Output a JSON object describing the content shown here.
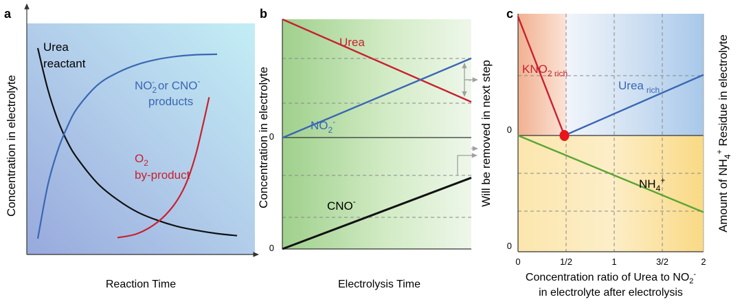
{
  "colors": {
    "urea": "#c8202f",
    "no2": "#3a67b3",
    "cno": "#111111",
    "o2": "#c8202f",
    "nh4": "#5aa533",
    "axis": "#333333",
    "gridline": "#999999"
  },
  "chart_data": [
    {
      "panel": "a",
      "type": "line",
      "title": "",
      "xlabel": "Reaction Time",
      "ylabel": "Concentration in electrolyte",
      "xlim": [
        0,
        10
      ],
      "ylim": [
        0,
        10
      ],
      "grid": false,
      "series": [
        {
          "name": "urea",
          "labels": [
            "Urea",
            "reactant"
          ],
          "x": [
            0,
            0.5,
            1,
            1.5,
            2,
            3,
            4,
            5,
            6,
            7,
            8,
            9,
            10
          ],
          "y": [
            9.6,
            7.6,
            6.1,
            5.0,
            4.2,
            3.0,
            2.2,
            1.6,
            1.2,
            0.9,
            0.7,
            0.55,
            0.45
          ]
        },
        {
          "name": "no2-cno",
          "label_prefix": "NO",
          "label_sub": "2",
          "label_sup": "-",
          "label_mid": " or CNO",
          "label_sup2": "-",
          "label_line2": "products",
          "x": [
            0,
            0.5,
            1,
            1.5,
            2,
            3,
            4,
            5,
            6,
            7,
            8,
            9
          ],
          "y": [
            0.3,
            2.9,
            4.6,
            5.8,
            6.7,
            7.8,
            8.4,
            8.8,
            9.05,
            9.2,
            9.28,
            9.3
          ]
        },
        {
          "name": "o2",
          "label_prefix": "O",
          "label_sub": "2",
          "label_line2": "by-product",
          "x": [
            4.0,
            5.0,
            6.0,
            6.8,
            7.4,
            7.9,
            8.3,
            8.6
          ],
          "y": [
            0.35,
            0.55,
            1.1,
            1.9,
            2.9,
            4.3,
            5.9,
            7.2
          ]
        }
      ]
    },
    {
      "panel": "b",
      "type": "line",
      "title": "",
      "xlabel": "Electrolysis Time",
      "ylabel": "Concentration in electrolyte",
      "y2label": "Will be removed in next step",
      "xlim": [
        0,
        1
      ],
      "ylim": [
        0,
        1
      ],
      "yticks": [
        {
          "value": 0.484,
          "label": "0"
        },
        {
          "value": 0,
          "label": "0"
        }
      ],
      "grid": true,
      "series": [
        {
          "name": "urea",
          "label": "Urea",
          "x": [
            0,
            1
          ],
          "y": [
            1.0,
            0.64
          ]
        },
        {
          "name": "no2",
          "label_prefix": "NO",
          "label_sub": "2",
          "label_sup": "-",
          "x": [
            0,
            1
          ],
          "y": [
            0.484,
            0.83
          ]
        },
        {
          "name": "cno",
          "label_prefix": "CNO",
          "label_sup": "-",
          "x": [
            0,
            1
          ],
          "y": [
            0,
            0.31
          ]
        }
      ]
    },
    {
      "panel": "c",
      "type": "line",
      "title": "",
      "xlabel": "Concentration ratio of Urea to NO",
      "xlabel_sub": "2",
      "xlabel_sup": "-",
      "xlabel_line2": "in electrolyte after electrolysis",
      "ylabel_left": "0",
      "ylabel_right_prefix": "Amount of NH",
      "ylabel_right_sub": "4",
      "ylabel_right_sup": "+",
      "ylabel_right_suffix": " Residue in electrolyte",
      "xlim": [
        0,
        2
      ],
      "xticks": [
        {
          "value": 0,
          "label": "0"
        },
        {
          "value": 0.5,
          "label": "1/2"
        },
        {
          "value": 1,
          "label": "1"
        },
        {
          "value": 1.5,
          "label": "3/2"
        },
        {
          "value": 2,
          "label": "2"
        }
      ],
      "yticks_labels": [
        "0",
        "0"
      ],
      "grid": true,
      "series": [
        {
          "name": "kno2-rich",
          "label_prefix": "KNO",
          "label_sub": "2 rich",
          "x": [
            0,
            0.5
          ],
          "y": [
            1.0,
            0
          ]
        },
        {
          "name": "urea-rich",
          "label_prefix": "Urea",
          "label_sub": "rich",
          "x": [
            0.5,
            2
          ],
          "y": [
            0,
            0.51
          ]
        },
        {
          "name": "nh4",
          "label_prefix": "NH",
          "label_sub": "4",
          "label_sup": "+",
          "x": [
            0,
            2
          ],
          "y": [
            0,
            -0.66
          ]
        }
      ],
      "annotations": [
        {
          "type": "point",
          "x": 0.5,
          "y": 0
        }
      ]
    }
  ],
  "panels": {
    "a": {
      "letter": "a"
    },
    "b": {
      "letter": "b"
    },
    "c": {
      "letter": "c"
    }
  }
}
